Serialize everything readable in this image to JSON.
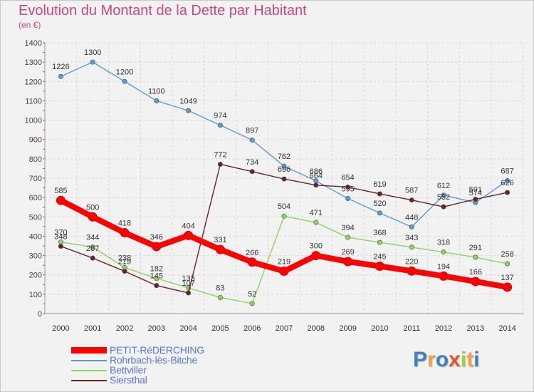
{
  "header": {
    "title": "Evolution du Montant de la Dette par Habitant",
    "subtitle": "(en €)"
  },
  "logo": {
    "text": "Proxiti",
    "colors": [
      "#3b82c4",
      "#f2a23a",
      "#3b82c4",
      "#e8552b",
      "#9bcf4f",
      "#f2a23a",
      "#3b82c4"
    ]
  },
  "chart_data": {
    "type": "line",
    "title": "Evolution du Montant de la Dette par Habitant",
    "subtitle": "(en €)",
    "xlabel": "",
    "ylabel": "",
    "ylim": [
      0,
      1400
    ],
    "yticks": [
      0,
      100,
      200,
      300,
      400,
      500,
      600,
      700,
      800,
      900,
      1000,
      1100,
      1200,
      1300,
      1400
    ],
    "x": [
      "2000",
      "2001",
      "2002",
      "2003",
      "2004",
      "2005",
      "2006",
      "2007",
      "2008",
      "2009",
      "2010",
      "2011",
      "2012",
      "2013",
      "2014"
    ],
    "grid": true,
    "legend_position": "bottom-left",
    "series": [
      {
        "name": "PETIT-RéDERCHING",
        "color": "#ff0000",
        "emphasis": true,
        "values": [
          585,
          500,
          418,
          346,
          404,
          331,
          266,
          219,
          300,
          269,
          245,
          220,
          194,
          166,
          137
        ]
      },
      {
        "name": "Rohrbach-lès-Bitche",
        "color": "#5b9bd5",
        "values": [
          1226,
          1300,
          1200,
          1100,
          1049,
          974,
          897,
          762,
          686,
          595,
          520,
          448,
          612,
          574,
          687
        ]
      },
      {
        "name": "Bettviller",
        "color": "#8ed45a",
        "values": [
          370,
          344,
          238,
          182,
          133,
          83,
          52,
          504,
          471,
          394,
          368,
          343,
          318,
          291,
          258
        ]
      },
      {
        "name": "Siersthal",
        "color": "#6b2222",
        "values": [
          348,
          287,
          219,
          145,
          107,
          772,
          734,
          696,
          664,
          654,
          619,
          587,
          552,
          591,
          626
        ]
      }
    ]
  }
}
